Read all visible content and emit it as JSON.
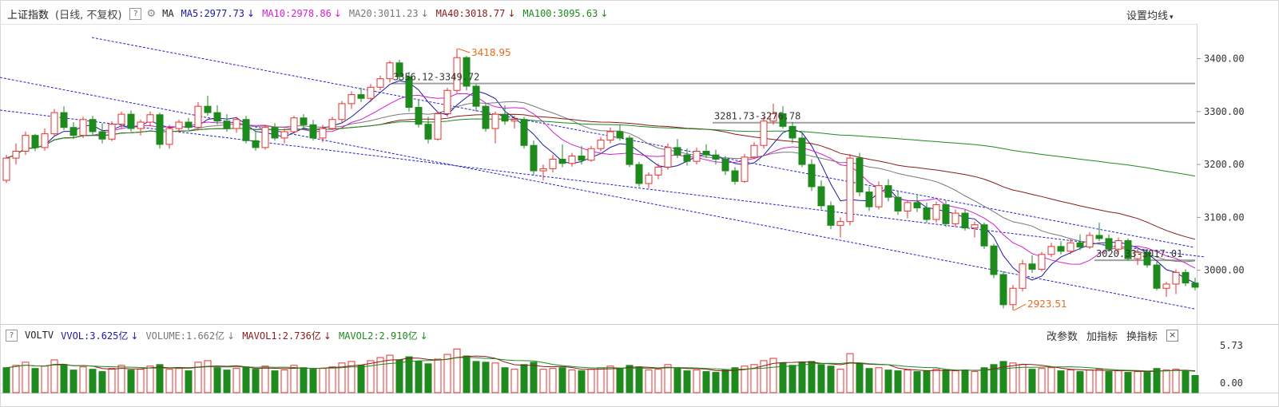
{
  "header": {
    "index_name": "上证指数",
    "period": "(日线, 不复权)",
    "help": "?",
    "settings_icon": "gear-icon",
    "ma_label": "MA",
    "ma": [
      {
        "label": "MA5:2977.73",
        "arrow": "↓",
        "color": "#1a1aa8"
      },
      {
        "label": "MA10:2978.86",
        "arrow": "↓",
        "color": "#d020d0"
      },
      {
        "label": "MA20:3011.23",
        "arrow": "↓",
        "color": "#777777"
      },
      {
        "label": "MA40:3018.77",
        "arrow": "↓",
        "color": "#8b1a1a"
      },
      {
        "label": "MA100:3095.63",
        "arrow": "↓",
        "color": "#1e8a1e"
      }
    ],
    "ma_settings": "设置均线",
    "ma_settings_caret": "▾"
  },
  "volume_header": {
    "help": "?",
    "name": "VOLTV",
    "items": [
      {
        "label": "VVOL:3.625亿",
        "arrow": "↓",
        "color": "#1a1aa8"
      },
      {
        "label": "VOLUME:1.662亿",
        "arrow": "↓",
        "color": "#777777"
      },
      {
        "label": "MAVOL1:2.736亿",
        "arrow": "↓",
        "color": "#8b1a1a"
      },
      {
        "label": "MAVOL2:2.910亿",
        "arrow": "↓",
        "color": "#1e8a1e"
      }
    ],
    "buttons": [
      "改参数",
      "加指标",
      "换指标"
    ],
    "close": "×"
  },
  "chart_data": {
    "type": "candlestick",
    "y_ticks": [
      "3400.00",
      "3300.00",
      "3200.00",
      "3100.00",
      "3000.00"
    ],
    "ylim": [
      2900,
      3450
    ],
    "volume_ticks": [
      "5.73",
      "0.00"
    ],
    "volume_ylim": [
      0,
      5.73
    ],
    "annotations": [
      {
        "text": "3418.95",
        "kind": "high"
      },
      {
        "text": "2923.51",
        "kind": "low"
      },
      {
        "text": "3356.12-3349.72",
        "kind": "level",
        "value": 3353
      },
      {
        "text": "3281.73-3276.78",
        "kind": "level",
        "value": 3279
      },
      {
        "text": "3020.33-3017.01",
        "kind": "level",
        "value": 3019
      }
    ],
    "colors": {
      "up": "#e8312f",
      "down": "#1e8a1e",
      "ma5": "#1a1aa8",
      "ma10": "#d020d0",
      "ma20": "#777777",
      "ma40": "#8b1a1a",
      "ma100": "#1e8a1e",
      "channel": "#2222cc",
      "annotation": "#e86a1a"
    },
    "candles": [
      [
        3170,
        3218,
        3165,
        3212
      ],
      [
        3212,
        3240,
        3200,
        3225
      ],
      [
        3225,
        3262,
        3218,
        3255
      ],
      [
        3255,
        3258,
        3225,
        3232
      ],
      [
        3232,
        3268,
        3226,
        3258
      ],
      [
        3258,
        3305,
        3252,
        3298
      ],
      [
        3298,
        3310,
        3265,
        3270
      ],
      [
        3270,
        3280,
        3248,
        3255
      ],
      [
        3255,
        3290,
        3250,
        3285
      ],
      [
        3285,
        3292,
        3255,
        3262
      ],
      [
        3262,
        3278,
        3240,
        3248
      ],
      [
        3248,
        3282,
        3244,
        3276
      ],
      [
        3276,
        3300,
        3268,
        3295
      ],
      [
        3295,
        3302,
        3262,
        3268
      ],
      [
        3268,
        3285,
        3255,
        3280
      ],
      [
        3280,
        3300,
        3272,
        3294
      ],
      [
        3294,
        3298,
        3230,
        3238
      ],
      [
        3238,
        3275,
        3230,
        3268
      ],
      [
        3268,
        3285,
        3260,
        3280
      ],
      [
        3280,
        3288,
        3265,
        3270
      ],
      [
        3270,
        3318,
        3265,
        3310
      ],
      [
        3310,
        3330,
        3292,
        3298
      ],
      [
        3298,
        3312,
        3275,
        3282
      ],
      [
        3282,
        3295,
        3262,
        3268
      ],
      [
        3268,
        3290,
        3260,
        3285
      ],
      [
        3285,
        3292,
        3240,
        3245
      ],
      [
        3245,
        3262,
        3226,
        3232
      ],
      [
        3232,
        3275,
        3228,
        3270
      ],
      [
        3270,
        3278,
        3245,
        3250
      ],
      [
        3250,
        3268,
        3240,
        3262
      ],
      [
        3262,
        3292,
        3258,
        3288
      ],
      [
        3288,
        3295,
        3270,
        3275
      ],
      [
        3275,
        3284,
        3245,
        3250
      ],
      [
        3250,
        3275,
        3242,
        3268
      ],
      [
        3268,
        3290,
        3265,
        3285
      ],
      [
        3285,
        3320,
        3280,
        3315
      ],
      [
        3315,
        3338,
        3305,
        3332
      ],
      [
        3332,
        3345,
        3318,
        3325
      ],
      [
        3325,
        3352,
        3318,
        3346
      ],
      [
        3346,
        3368,
        3340,
        3362
      ],
      [
        3362,
        3396,
        3355,
        3392
      ],
      [
        3392,
        3398,
        3360,
        3366
      ],
      [
        3366,
        3375,
        3300,
        3308
      ],
      [
        3308,
        3322,
        3270,
        3276
      ],
      [
        3276,
        3290,
        3240,
        3248
      ],
      [
        3248,
        3300,
        3245,
        3296
      ],
      [
        3296,
        3345,
        3290,
        3340
      ],
      [
        3340,
        3419,
        3335,
        3402
      ],
      [
        3402,
        3405,
        3340,
        3348
      ],
      [
        3348,
        3352,
        3300,
        3310
      ],
      [
        3310,
        3315,
        3262,
        3268
      ],
      [
        3268,
        3300,
        3240,
        3295
      ],
      [
        3295,
        3312,
        3275,
        3282
      ],
      [
        3282,
        3292,
        3268,
        3285
      ],
      [
        3285,
        3290,
        3230,
        3236
      ],
      [
        3236,
        3245,
        3180,
        3188
      ],
      [
        3188,
        3200,
        3170,
        3192
      ],
      [
        3192,
        3218,
        3185,
        3210
      ],
      [
        3210,
        3238,
        3195,
        3202
      ],
      [
        3202,
        3222,
        3196,
        3216
      ],
      [
        3216,
        3235,
        3200,
        3208
      ],
      [
        3208,
        3235,
        3205,
        3230
      ],
      [
        3230,
        3252,
        3225,
        3246
      ],
      [
        3246,
        3270,
        3240,
        3262
      ],
      [
        3262,
        3275,
        3245,
        3250
      ],
      [
        3250,
        3255,
        3195,
        3200
      ],
      [
        3200,
        3205,
        3158,
        3164
      ],
      [
        3164,
        3185,
        3155,
        3180
      ],
      [
        3180,
        3202,
        3172,
        3195
      ],
      [
        3195,
        3240,
        3190,
        3232
      ],
      [
        3232,
        3248,
        3212,
        3218
      ],
      [
        3218,
        3230,
        3198,
        3206
      ],
      [
        3206,
        3232,
        3200,
        3225
      ],
      [
        3225,
        3238,
        3212,
        3218
      ],
      [
        3218,
        3228,
        3200,
        3210
      ],
      [
        3210,
        3216,
        3180,
        3188
      ],
      [
        3188,
        3195,
        3162,
        3168
      ],
      [
        3168,
        3220,
        3165,
        3214
      ],
      [
        3214,
        3242,
        3210,
        3236
      ],
      [
        3236,
        3290,
        3230,
        3282
      ],
      [
        3282,
        3315,
        3275,
        3296
      ],
      [
        3296,
        3310,
        3268,
        3272
      ],
      [
        3272,
        3280,
        3240,
        3250
      ],
      [
        3250,
        3260,
        3195,
        3200
      ],
      [
        3200,
        3210,
        3150,
        3158
      ],
      [
        3158,
        3170,
        3115,
        3122
      ],
      [
        3122,
        3130,
        3078,
        3085
      ],
      [
        3085,
        3100,
        3062,
        3092
      ],
      [
        3092,
        3220,
        3085,
        3212
      ],
      [
        3212,
        3222,
        3140,
        3148
      ],
      [
        3148,
        3158,
        3112,
        3120
      ],
      [
        3120,
        3168,
        3115,
        3160
      ],
      [
        3160,
        3172,
        3130,
        3138
      ],
      [
        3138,
        3150,
        3105,
        3112
      ],
      [
        3112,
        3132,
        3098,
        3128
      ],
      [
        3128,
        3142,
        3110,
        3118
      ],
      [
        3118,
        3128,
        3090,
        3096
      ],
      [
        3096,
        3130,
        3090,
        3124
      ],
      [
        3124,
        3132,
        3082,
        3088
      ],
      [
        3088,
        3115,
        3082,
        3108
      ],
      [
        3108,
        3115,
        3075,
        3080
      ],
      [
        3080,
        3092,
        3062,
        3086
      ],
      [
        3086,
        3090,
        3040,
        3046
      ],
      [
        3046,
        3050,
        2985,
        2992
      ],
      [
        2992,
        2998,
        2928,
        2935
      ],
      [
        2935,
        2972,
        2924,
        2966
      ],
      [
        2966,
        3020,
        2960,
        3012
      ],
      [
        3012,
        3028,
        2995,
        3002
      ],
      [
        3002,
        3035,
        2998,
        3030
      ],
      [
        3030,
        3052,
        3025,
        3045
      ],
      [
        3045,
        3055,
        3030,
        3036
      ],
      [
        3036,
        3060,
        3030,
        3052
      ],
      [
        3052,
        3068,
        3038,
        3044
      ],
      [
        3044,
        3072,
        3040,
        3066
      ],
      [
        3066,
        3090,
        3055,
        3060
      ],
      [
        3060,
        3068,
        3035,
        3040
      ],
      [
        3040,
        3062,
        3030,
        3056
      ],
      [
        3056,
        3060,
        3018,
        3022
      ],
      [
        3022,
        3040,
        3010,
        3034
      ],
      [
        3034,
        3040,
        3005,
        3010
      ],
      [
        3010,
        3016,
        2962,
        2966
      ],
      [
        2966,
        2978,
        2950,
        2974
      ],
      [
        2974,
        3002,
        2955,
        2996
      ],
      [
        2996,
        3002,
        2970,
        2976
      ],
      [
        2976,
        2986,
        2962,
        2968
      ]
    ],
    "volume": [
      [
        3.2,
        0
      ],
      [
        3.5,
        1
      ],
      [
        3.9,
        1
      ],
      [
        3.1,
        0
      ],
      [
        3.4,
        1
      ],
      [
        4.2,
        1
      ],
      [
        3.6,
        0
      ],
      [
        2.9,
        0
      ],
      [
        3.3,
        1
      ],
      [
        3.0,
        0
      ],
      [
        2.7,
        0
      ],
      [
        3.1,
        1
      ],
      [
        3.5,
        1
      ],
      [
        2.9,
        0
      ],
      [
        3.0,
        1
      ],
      [
        3.4,
        1
      ],
      [
        3.6,
        0
      ],
      [
        3.0,
        1
      ],
      [
        3.1,
        1
      ],
      [
        2.8,
        0
      ],
      [
        3.9,
        1
      ],
      [
        4.1,
        1
      ],
      [
        3.2,
        0
      ],
      [
        2.9,
        0
      ],
      [
        3.1,
        1
      ],
      [
        3.3,
        0
      ],
      [
        3.0,
        0
      ],
      [
        3.4,
        1
      ],
      [
        2.8,
        0
      ],
      [
        2.9,
        1
      ],
      [
        3.5,
        1
      ],
      [
        3.2,
        0
      ],
      [
        3.0,
        0
      ],
      [
        3.1,
        1
      ],
      [
        3.3,
        1
      ],
      [
        3.8,
        1
      ],
      [
        4.0,
        1
      ],
      [
        3.5,
        0
      ],
      [
        4.1,
        1
      ],
      [
        4.5,
        1
      ],
      [
        4.8,
        1
      ],
      [
        4.2,
        0
      ],
      [
        4.6,
        0
      ],
      [
        4.0,
        0
      ],
      [
        3.7,
        0
      ],
      [
        4.3,
        1
      ],
      [
        4.9,
        1
      ],
      [
        5.6,
        1
      ],
      [
        4.7,
        0
      ],
      [
        4.0,
        0
      ],
      [
        3.9,
        0
      ],
      [
        3.8,
        1
      ],
      [
        3.2,
        0
      ],
      [
        3.0,
        1
      ],
      [
        3.6,
        0
      ],
      [
        3.9,
        0
      ],
      [
        3.0,
        1
      ],
      [
        3.1,
        1
      ],
      [
        3.2,
        0
      ],
      [
        2.9,
        1
      ],
      [
        2.8,
        0
      ],
      [
        3.0,
        1
      ],
      [
        3.2,
        1
      ],
      [
        3.4,
        1
      ],
      [
        3.1,
        0
      ],
      [
        3.5,
        0
      ],
      [
        3.3,
        0
      ],
      [
        2.9,
        1
      ],
      [
        3.0,
        1
      ],
      [
        3.6,
        1
      ],
      [
        3.1,
        0
      ],
      [
        2.8,
        0
      ],
      [
        2.9,
        1
      ],
      [
        2.7,
        0
      ],
      [
        2.6,
        0
      ],
      [
        2.9,
        0
      ],
      [
        3.2,
        0
      ],
      [
        3.4,
        1
      ],
      [
        3.6,
        1
      ],
      [
        4.1,
        1
      ],
      [
        4.4,
        1
      ],
      [
        3.8,
        0
      ],
      [
        3.5,
        0
      ],
      [
        3.9,
        0
      ],
      [
        4.0,
        0
      ],
      [
        3.6,
        0
      ],
      [
        3.4,
        0
      ],
      [
        3.0,
        1
      ],
      [
        5.0,
        1
      ],
      [
        3.7,
        0
      ],
      [
        3.1,
        0
      ],
      [
        3.2,
        1
      ],
      [
        2.9,
        0
      ],
      [
        2.8,
        0
      ],
      [
        2.9,
        1
      ],
      [
        2.7,
        0
      ],
      [
        2.8,
        0
      ],
      [
        3.0,
        1
      ],
      [
        2.9,
        0
      ],
      [
        2.8,
        1
      ],
      [
        2.9,
        0
      ],
      [
        2.7,
        1
      ],
      [
        3.2,
        0
      ],
      [
        3.6,
        0
      ],
      [
        4.0,
        0
      ],
      [
        3.8,
        1
      ],
      [
        3.6,
        1
      ],
      [
        3.0,
        0
      ],
      [
        3.1,
        1
      ],
      [
        3.2,
        1
      ],
      [
        2.8,
        0
      ],
      [
        2.9,
        1
      ],
      [
        2.7,
        0
      ],
      [
        2.9,
        1
      ],
      [
        3.0,
        1
      ],
      [
        2.7,
        0
      ],
      [
        2.8,
        1
      ],
      [
        2.6,
        0
      ],
      [
        2.7,
        1
      ],
      [
        2.6,
        0
      ],
      [
        3.1,
        0
      ],
      [
        2.9,
        1
      ],
      [
        3.0,
        1
      ],
      [
        2.8,
        0
      ],
      [
        2.2,
        0
      ]
    ]
  }
}
